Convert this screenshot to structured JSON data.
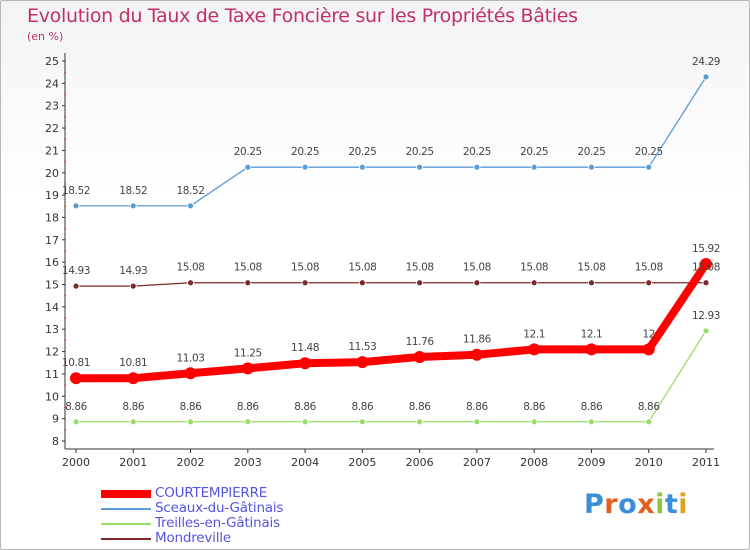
{
  "title": "Evolution du Taux de Taxe Foncière sur les Propriétés Bâties",
  "unit_label": "(en %)",
  "chart_data": {
    "type": "line",
    "title": "Evolution du Taux de Taxe Foncière sur les Propriétés Bâties",
    "ylabel": "(en %)",
    "xlabel": "",
    "x": [
      "2000",
      "2001",
      "2002",
      "2003",
      "2004",
      "2005",
      "2006",
      "2007",
      "2008",
      "2009",
      "2010",
      "2011"
    ],
    "ylim": [
      8,
      25
    ],
    "yticks": [
      8,
      9,
      10,
      11,
      12,
      13,
      14,
      15,
      16,
      17,
      18,
      19,
      20,
      21,
      22,
      23,
      24,
      25
    ],
    "grid": false,
    "legend_position": "bottom-left",
    "series": [
      {
        "name": "COURTEMPIERRE",
        "color": "#ff0000",
        "values": [
          10.81,
          10.81,
          11.03,
          11.25,
          11.48,
          11.53,
          11.76,
          11.86,
          12.1,
          12.1,
          12.1,
          15.92
        ],
        "labels": [
          "10.81",
          "10.81",
          "11.03",
          "11.25",
          "11.48",
          "11.53",
          "11.76",
          "11.86",
          "12.1",
          "12.1",
          "12",
          "15.92"
        ]
      },
      {
        "name": "Sceaux-du-Gâtinais",
        "color": "#5b9bd5",
        "values": [
          18.52,
          18.52,
          18.52,
          20.25,
          20.25,
          20.25,
          20.25,
          20.25,
          20.25,
          20.25,
          20.25,
          24.29
        ],
        "labels": [
          "18.52",
          "18.52",
          "18.52",
          "20.25",
          "20.25",
          "20.25",
          "20.25",
          "20.25",
          "20.25",
          "20.25",
          "20.25",
          "24.29"
        ]
      },
      {
        "name": "Treilles-en-Gâtinais",
        "color": "#99dd66",
        "values": [
          8.86,
          8.86,
          8.86,
          8.86,
          8.86,
          8.86,
          8.86,
          8.86,
          8.86,
          8.86,
          8.86,
          12.93
        ],
        "labels": [
          "8.86",
          "8.86",
          "8.86",
          "8.86",
          "8.86",
          "8.86",
          "8.86",
          "8.86",
          "8.86",
          "8.86",
          "8.86",
          "12.93"
        ]
      },
      {
        "name": "Mondreville",
        "color": "#7a2a2a",
        "values": [
          14.93,
          14.93,
          15.08,
          15.08,
          15.08,
          15.08,
          15.08,
          15.08,
          15.08,
          15.08,
          15.08,
          15.08
        ],
        "labels": [
          "14.93",
          "14.93",
          "15.08",
          "15.08",
          "15.08",
          "15.08",
          "15.08",
          "15.08",
          "15.08",
          "15.08",
          "15.08",
          "15.08"
        ]
      }
    ]
  },
  "logo": {
    "text": "Proxiti",
    "colors": [
      "#3a8fd6",
      "#e06020",
      "#3a8fd6",
      "#e06020",
      "#8cc63e",
      "#3a8fd6",
      "#e0a020"
    ]
  }
}
